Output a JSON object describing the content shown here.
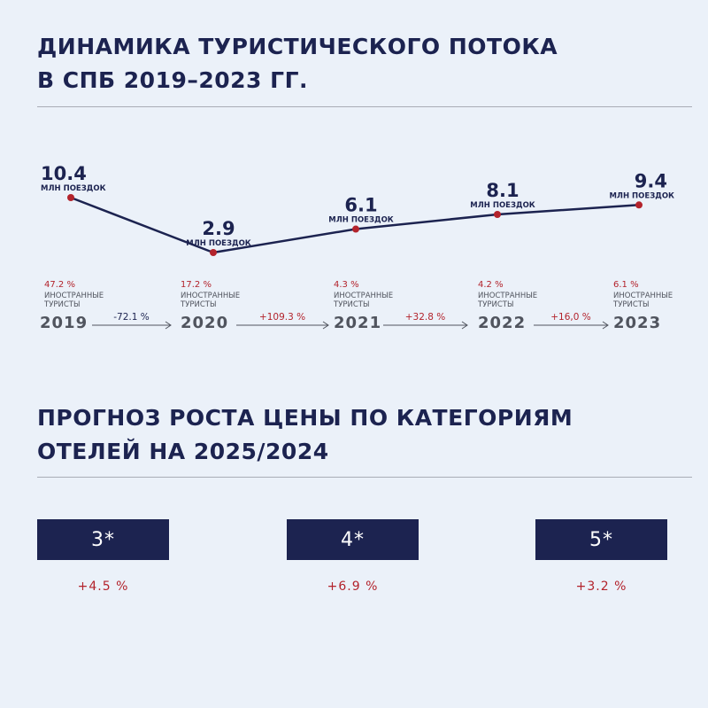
{
  "section1": {
    "title_line1": "ДИНАМИКА ТУРИСТИЧЕСКОГО ПОТОКА",
    "title_line2": "В СПБ 2019–2023 ГГ."
  },
  "section2": {
    "title_line1": "ПРОГНОЗ РОСТА ЦЕНЫ ПО КАТЕГОРИЯМ",
    "title_line2": "ОТЕЛЕЙ НА 2025/2024"
  },
  "colors": {
    "navy": "#1c2350",
    "accent_red": "#b3232c",
    "background": "#ebf1f9",
    "year_gray": "#50545e"
  },
  "chart_data": {
    "type": "line",
    "x": [
      "2019",
      "2020",
      "2021",
      "2022",
      "2023"
    ],
    "series": [
      {
        "values": [
          10.4,
          2.9,
          6.1,
          8.1,
          9.4
        ],
        "value_labels": [
          "10.4",
          "2.9",
          "6.1",
          "8.1",
          "9.4"
        ],
        "unit_label": "МЛН ПОЕЗДОК"
      }
    ],
    "foreign_share": [
      "47.2 %",
      "17.2 %",
      "4.3 %",
      "4.2 %",
      "6.1 %"
    ],
    "foreign_label_line1": "ИНОСТРАННЫЕ",
    "foreign_label_line2": "ТУРИСТЫ",
    "changes": [
      "-72.1 %",
      "+109.3 %",
      "+32.8 %",
      "+16,0 %"
    ],
    "grid": false,
    "legend": "none"
  },
  "hotel_categories": [
    {
      "label": "3*",
      "growth": "+4.5 %"
    },
    {
      "label": "4*",
      "growth": "+6.9 %"
    },
    {
      "label": "5*",
      "growth": "+3.2 %"
    }
  ]
}
